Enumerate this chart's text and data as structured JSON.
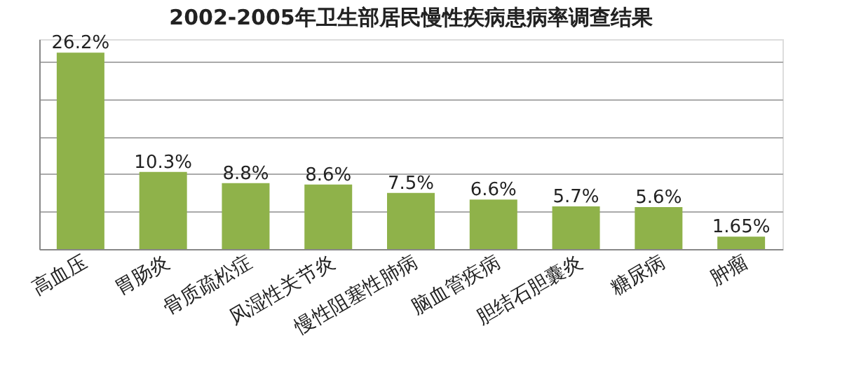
{
  "chart_data": {
    "type": "bar",
    "title": "2002-2005年卫生部居民慢性疾病患病率调查结果",
    "categories": [
      "高血压",
      "胃肠炎",
      "骨质疏松症",
      "风湿性关节炎",
      "慢性阻塞性肺病",
      "脑血管疾病",
      "胆结石胆囊炎",
      "糖尿病",
      "肿瘤"
    ],
    "values": [
      26.2,
      10.3,
      8.8,
      8.6,
      7.5,
      6.6,
      5.7,
      5.6,
      1.65
    ],
    "value_labels": [
      "26.2%",
      "10.3%",
      "8.8%",
      "8.6%",
      "7.5%",
      "6.6%",
      "5.7%",
      "5.6%",
      "1.65%"
    ],
    "color": "#8fb24a",
    "grid": "y",
    "tick_labels": "x"
  }
}
